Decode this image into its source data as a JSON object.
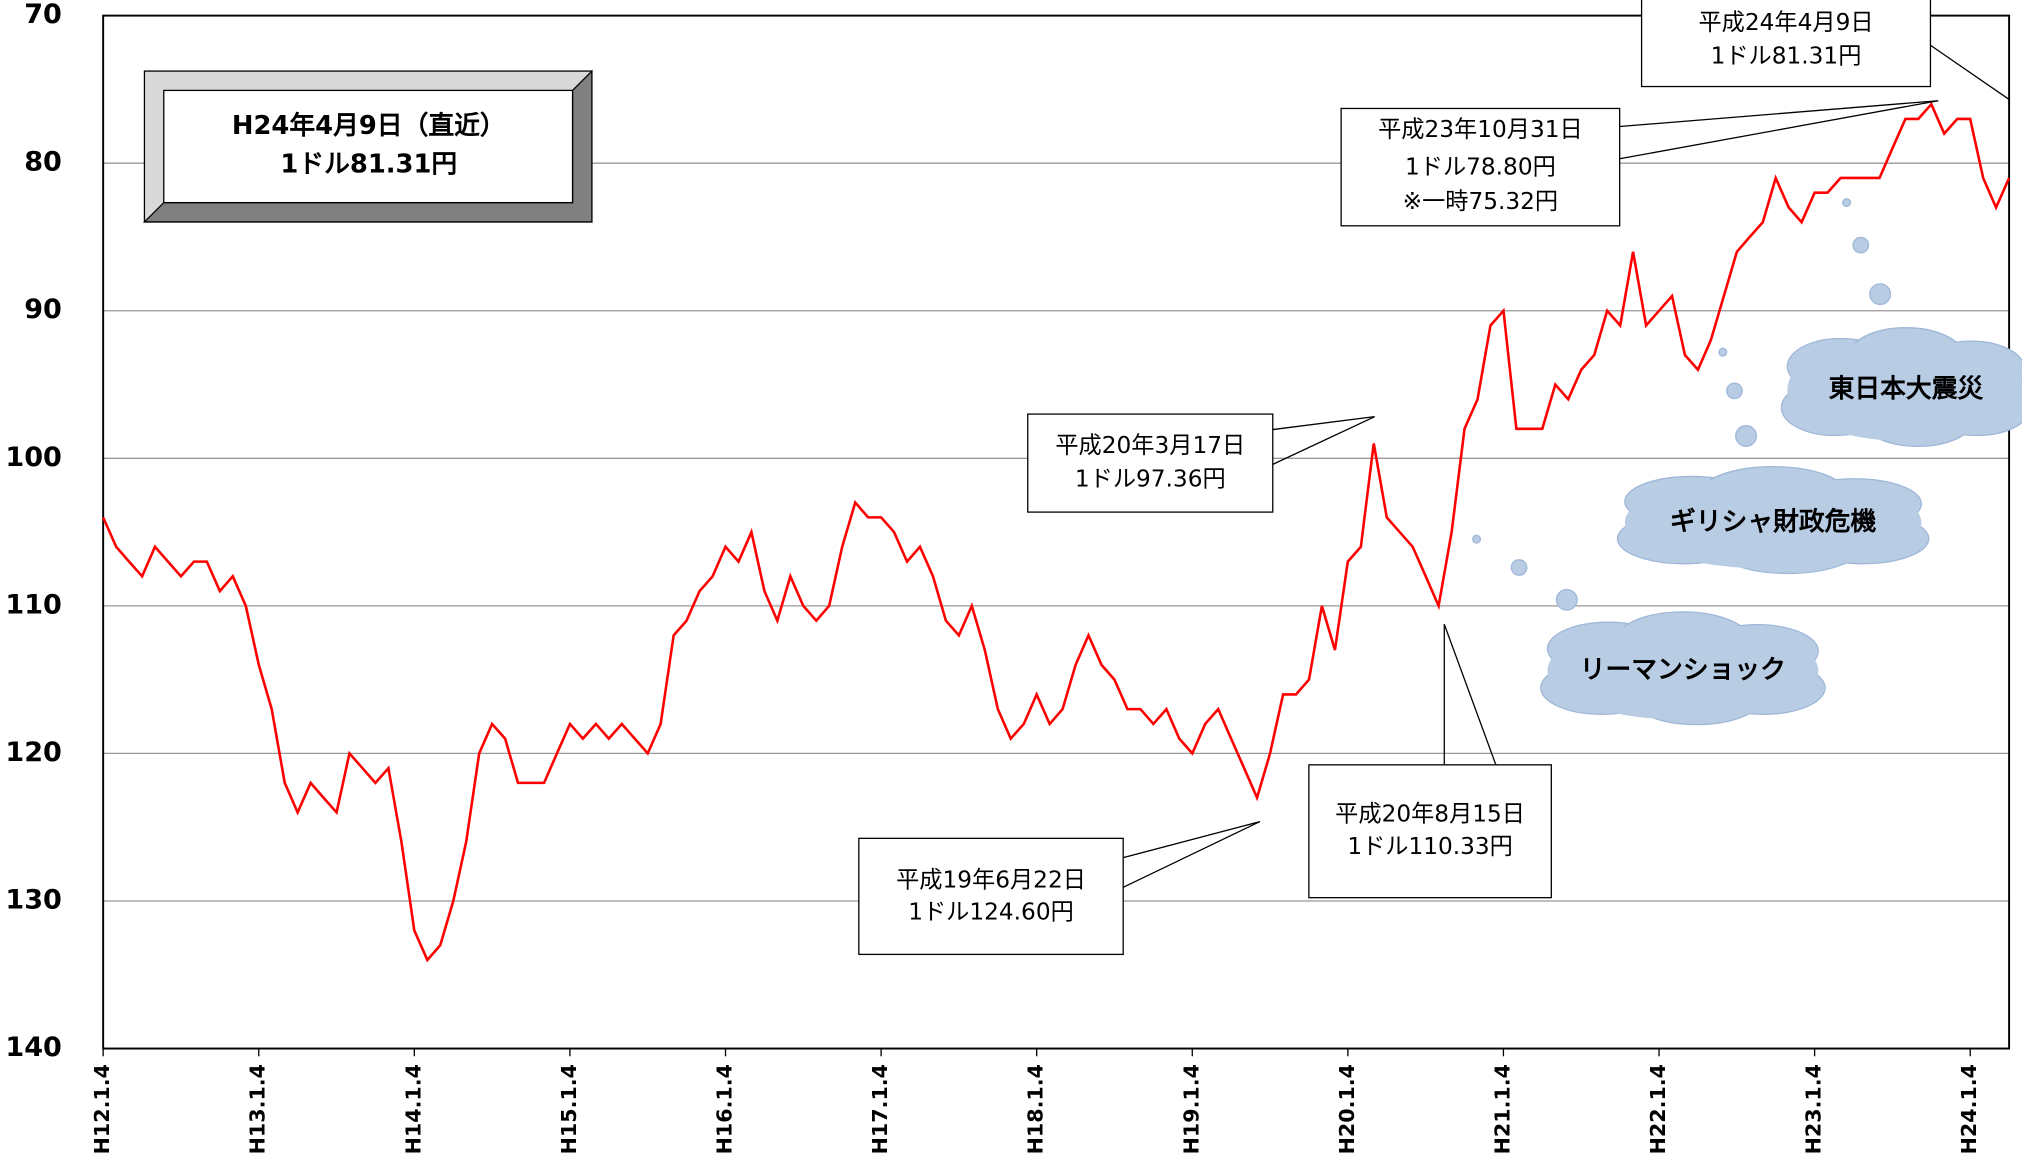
{
  "chart_data": {
    "type": "line",
    "categories": [
      "H12.1.4",
      null,
      null,
      null,
      null,
      null,
      null,
      null,
      null,
      null,
      null,
      null,
      "H13.1.4",
      null,
      null,
      null,
      null,
      null,
      null,
      null,
      null,
      null,
      null,
      null,
      "H14.1.4",
      null,
      null,
      null,
      null,
      null,
      null,
      null,
      null,
      null,
      null,
      null,
      "H15.1.4",
      null,
      null,
      null,
      null,
      null,
      null,
      null,
      null,
      null,
      null,
      null,
      "H16.1.4",
      null,
      null,
      null,
      null,
      null,
      null,
      null,
      null,
      null,
      null,
      null,
      "H17.1.4",
      null,
      null,
      null,
      null,
      null,
      null,
      null,
      null,
      null,
      null,
      null,
      "H18.1.4",
      null,
      null,
      null,
      null,
      null,
      null,
      null,
      null,
      null,
      null,
      null,
      "H19.1.4",
      null,
      null,
      null,
      null,
      null,
      null,
      null,
      null,
      null,
      null,
      null,
      "H20.1.4",
      null,
      null,
      null,
      null,
      null,
      null,
      null,
      null,
      null,
      null,
      null,
      "H21.1.4",
      null,
      null,
      null,
      null,
      null,
      null,
      null,
      null,
      null,
      null,
      null,
      "H22.1.4",
      null,
      null,
      null,
      null,
      null,
      null,
      null,
      null,
      null,
      null,
      null,
      "H23.1.4",
      null,
      null,
      null,
      null,
      null,
      null,
      null,
      null,
      null,
      null,
      null,
      "H24.1.4",
      null,
      null,
      null
    ],
    "series": [
      {
        "color": "#ff0000",
        "values": [
          104,
          106,
          107,
          108,
          106,
          107,
          108,
          107,
          107,
          109,
          108,
          110,
          114,
          117,
          122,
          124,
          122,
          123,
          124,
          120,
          121,
          122,
          121,
          126,
          132,
          134,
          133,
          130,
          126,
          120,
          118,
          119,
          122,
          122,
          122,
          120,
          118,
          119,
          118,
          119,
          118,
          119,
          120,
          118,
          112,
          111,
          109,
          108,
          106,
          107,
          105,
          109,
          111,
          108,
          110,
          111,
          110,
          106,
          103,
          104,
          104,
          105,
          107,
          106,
          108,
          111,
          112,
          110,
          113,
          117,
          119,
          118,
          116,
          118,
          117,
          114,
          112,
          114,
          115,
          117,
          117,
          118,
          117,
          119,
          120,
          118,
          117,
          119,
          121,
          123,
          120,
          116,
          116,
          115,
          110,
          113,
          107,
          106,
          99,
          104,
          105,
          106,
          108,
          110,
          105,
          98,
          96,
          91,
          90,
          98,
          98,
          98,
          95,
          96,
          94,
          93,
          90,
          91,
          86,
          91,
          90,
          89,
          93,
          94,
          92,
          89,
          86,
          85,
          84,
          81,
          83,
          84,
          82,
          82,
          81,
          81,
          81,
          81,
          79,
          77,
          77,
          76,
          78,
          77,
          77,
          81,
          83,
          81
        ]
      }
    ],
    "ylim": [
      70,
      140
    ],
    "y_inverted": true,
    "yticks": [
      70,
      80,
      90,
      100,
      110,
      120,
      130,
      140
    ],
    "grid": true,
    "annotations": [
      {
        "lines": [
          "H24年4月9日（直近）",
          "1ドル81.31円"
        ]
      },
      {
        "lines": [
          "平成24年4月9日",
          "1ドル81.31円"
        ]
      },
      {
        "lines": [
          "平成23年10月31日",
          "1ドル78.80円",
          "※一時75.32円"
        ]
      },
      {
        "lines": [
          "平成20年3月17日",
          "1ドル97.36円"
        ]
      },
      {
        "lines": [
          "平成19年6月22日",
          "1ドル124.60円"
        ]
      },
      {
        "lines": [
          "平成20年8月15日",
          "1ドル110.33円"
        ]
      },
      {
        "lines": [
          "東日本大震災"
        ]
      },
      {
        "lines": [
          "ギリシャ財政危機"
        ]
      },
      {
        "lines": [
          "リーマンショック"
        ]
      }
    ]
  }
}
